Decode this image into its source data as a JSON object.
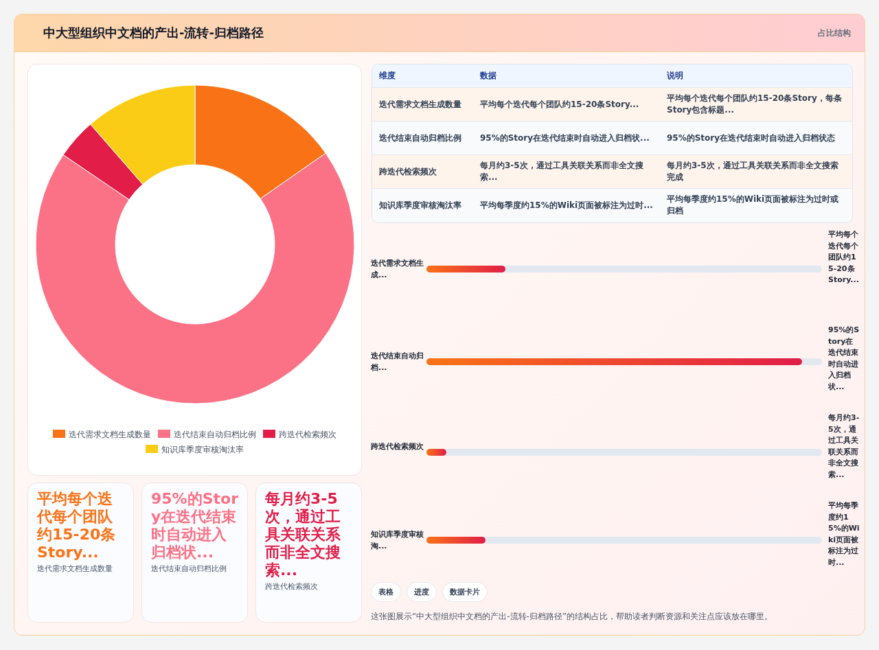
{
  "chart_data": [
    {
      "type": "donut",
      "title": "中大型组织中文档的产出-流转-归档路径",
      "legend": "bottom",
      "categories": [
        "迭代需求文档生成数量",
        "迭代结束自动归档比例",
        "跨迭代检索频次",
        "知识库季度审核淘汰率"
      ],
      "values": [
        15.3,
        69.2,
        4.1,
        11.4
      ],
      "colors": [
        "#f97316",
        "#fb7185",
        "#e11d48",
        "#facc15"
      ]
    },
    {
      "type": "other",
      "title": "占比结构",
      "annotations": [
        "维度",
        "数据",
        "说明",
        "迭代需求文档生成数量",
        "平均每个迭代每个团队约15-20条Story...",
        "平均每个迭代每个团队约15-20条Story，每条Story包含标题...",
        "迭代结束自动归档比例",
        "95%的Story在迭代结束时自动进入归档状...",
        "95%的Story在迭代结束时自动进入归档状态",
        "跨迭代检索频次",
        "每月约3-5次，通过工具关联关系而非全文搜索...",
        "每月约3-5次，通过工具关联关系而非全文搜索完成",
        "知识库季度审核淘汰率",
        "平均每季度约15%的Wiki页面被标注为过时...",
        "平均每季度约15%的Wiki页面被标注为过时或归档"
      ]
    },
    {
      "type": "bar",
      "orientation": "horizontal",
      "xlim": [
        0,
        100
      ],
      "color": "#e11d48",
      "categories": [
        "迭代需求文档生成...",
        "迭代结束自动归档...",
        "跨迭代检索频次",
        "知识库季度审核淘..."
      ],
      "values": [
        20,
        95,
        5,
        15
      ],
      "value_labels": [
        "平均每个迭代每个团队约15-20条Story...",
        "95%的Story在迭代结束时自动进入归档状...",
        "每月约3-5次，通过工具关联关系而非全文搜索...",
        "平均每季度约15%的Wiki页面被标注为过时..."
      ]
    },
    {
      "type": "other",
      "annotations": [
        "平均每个迭代每个团队约15-20条Story...",
        "迭代需求文档生成数量",
        "95%的Story在迭代结束时自动进入归档状...",
        "迭代结束自动归档比例",
        "每月约3-5次，通过工具关联关系而非全文搜索...",
        "跨迭代检索频次",
        "表格",
        "进度",
        "数据卡片",
        "这张图展示“中大型组织中文档的产出-流转-归档路径”的结构占比，帮助读者判断资源和关注点应该放在哪里。"
      ]
    }
  ]
}
